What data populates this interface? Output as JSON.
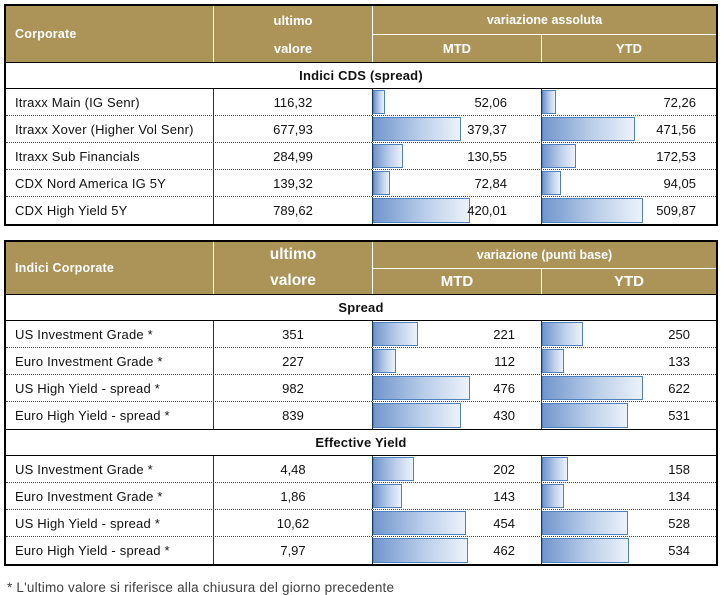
{
  "footnote": "* L'ultimo valore si riferisce alla chiusura del giorno precedente",
  "colors": {
    "header_bg": "#AC9358",
    "header_text": "#FFFFFF",
    "bar_border": "#4F81BD",
    "bar_fill_start": "#7296CC",
    "bar_fill_end": "#ECF2FA",
    "divider": "#17365D",
    "dotted": "#444444",
    "text": "#111111",
    "footnote_color": "#3F3F3F"
  },
  "bar_max_width_pct": 58,
  "chart_data": [
    {
      "type": "table",
      "title": "Corporate",
      "header": {
        "title": "Corporate",
        "ultimo_line1": "ultimo",
        "ultimo_line2": "valore",
        "group": "variazione assoluta",
        "mtd": "MTD",
        "ytd": "YTD"
      },
      "columns": [
        "Corporate",
        "ultimo valore",
        "MTD",
        "YTD"
      ],
      "sections": [
        {
          "title": "Indici CDS (spread)",
          "rows": [
            {
              "label": "Itraxx Main (IG Senr)",
              "ultimo": "116,32",
              "mtd": 52.06,
              "mtd_label": "52,06",
              "ytd": 72.26,
              "ytd_label": "72,26"
            },
            {
              "label": "Itraxx Xover (Higher Vol Senr)",
              "ultimo": "677,93",
              "mtd": 379.37,
              "mtd_label": "379,37",
              "ytd": 471.56,
              "ytd_label": "471,56"
            },
            {
              "label": "Itraxx Sub Financials",
              "ultimo": "284,99",
              "mtd": 130.55,
              "mtd_label": "130,55",
              "ytd": 172.53,
              "ytd_label": "172,53"
            },
            {
              "label": "CDX Nord America IG 5Y",
              "ultimo": "139,32",
              "mtd": 72.84,
              "mtd_label": "72,84",
              "ytd": 94.05,
              "ytd_label": "94,05"
            },
            {
              "label": "CDX High Yield 5Y",
              "ultimo": "789,62",
              "mtd": 420.01,
              "mtd_label": "420,01",
              "ytd": 509.87,
              "ytd_label": "509,87"
            }
          ]
        }
      ]
    },
    {
      "type": "table",
      "title": "Indici Corporate",
      "header": {
        "title": "Indici Corporate",
        "ultimo_line1": "ultimo",
        "ultimo_line2": "valore",
        "group": "variazione (punti base)",
        "mtd": "MTD",
        "ytd": "YTD"
      },
      "columns": [
        "Indici Corporate",
        "ultimo valore",
        "MTD",
        "YTD"
      ],
      "sections": [
        {
          "title": "Spread",
          "rows": [
            {
              "label": "US Investment Grade *",
              "ultimo": "351",
              "mtd": 221,
              "mtd_label": "221",
              "ytd": 250,
              "ytd_label": "250"
            },
            {
              "label": "Euro Investment Grade *",
              "ultimo": "227",
              "mtd": 112,
              "mtd_label": "112",
              "ytd": 133,
              "ytd_label": "133"
            },
            {
              "label": "US High Yield  - spread *",
              "ultimo": "982",
              "mtd": 476,
              "mtd_label": "476",
              "ytd": 622,
              "ytd_label": "622"
            },
            {
              "label": "Euro High Yield  - spread *",
              "ultimo": "839",
              "mtd": 430,
              "mtd_label": "430",
              "ytd": 531,
              "ytd_label": "531"
            }
          ]
        },
        {
          "title": "Effective Yield",
          "rows": [
            {
              "label": "US Investment Grade *",
              "ultimo": "4,48",
              "mtd": 202,
              "mtd_label": "202",
              "ytd": 158,
              "ytd_label": "158"
            },
            {
              "label": "Euro Investment Grade *",
              "ultimo": "1,86",
              "mtd": 143,
              "mtd_label": "143",
              "ytd": 134,
              "ytd_label": "134"
            },
            {
              "label": "US High Yield  - spread *",
              "ultimo": "10,62",
              "mtd": 454,
              "mtd_label": "454",
              "ytd": 528,
              "ytd_label": "528"
            },
            {
              "label": "Euro High Yield  - spread *",
              "ultimo": "7,97",
              "mtd": 462,
              "mtd_label": "462",
              "ytd": 534,
              "ytd_label": "534"
            }
          ]
        }
      ]
    }
  ]
}
